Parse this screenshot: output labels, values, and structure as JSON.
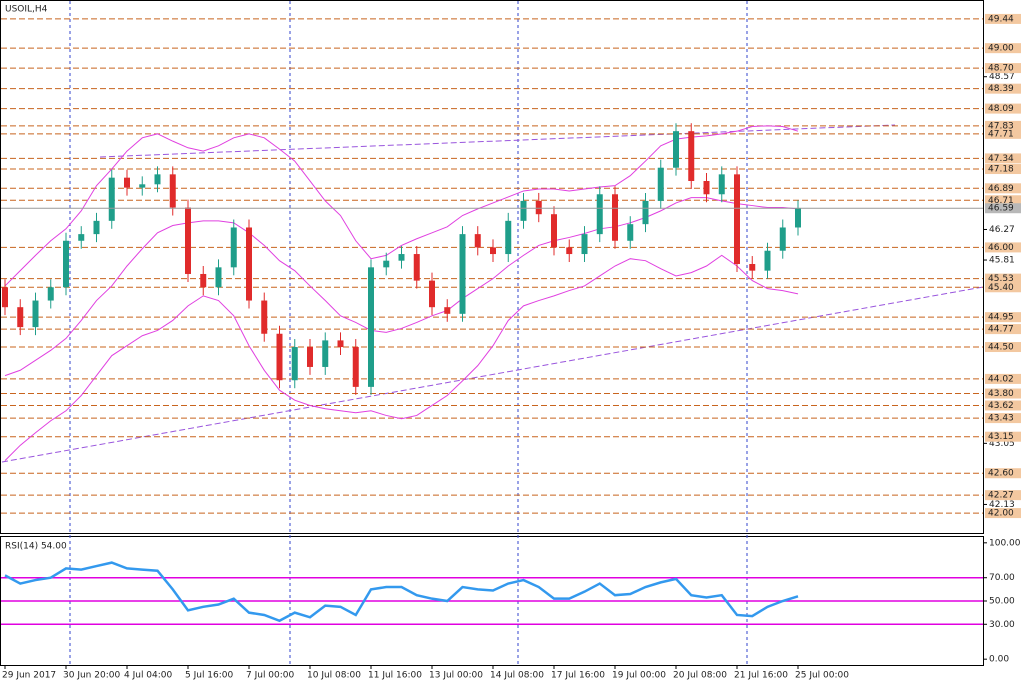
{
  "chart_data": [
    {
      "type": "candlestick",
      "title": "USOIL,H4",
      "categories": [
        "29 Jun 2017",
        null,
        null,
        null,
        "30 Jun 20:00",
        null,
        null,
        null,
        "4 Jul 04:00",
        null,
        null,
        null,
        "5 Jul 16:00",
        null,
        null,
        null,
        "7 Jul 00:00",
        null,
        null,
        null,
        "10 Jul 08:00",
        null,
        null,
        null,
        "11 Jul 16:00",
        null,
        null,
        null,
        "13 Jul 00:00",
        null,
        null,
        null,
        "14 Jul 08:00",
        null,
        null,
        null,
        "17 Jul 16:00",
        null,
        null,
        null,
        "19 Jul 00:00",
        null,
        null,
        null,
        "20 Jul 08:00",
        null,
        null,
        null,
        "21 Jul 16:00",
        null,
        null,
        null,
        "25 Jul 00:00"
      ],
      "open": [
        45.4,
        45.1,
        44.8,
        45.2,
        45.4,
        46.1,
        46.2,
        46.4,
        47.05,
        46.9,
        46.95,
        47.1,
        46.6,
        45.6,
        45.4,
        45.7,
        46.3,
        45.2,
        44.7,
        44.0,
        44.5,
        44.2,
        44.6,
        44.5,
        43.9,
        45.7,
        45.8,
        45.9,
        45.5,
        45.1,
        45.0,
        46.2,
        46.0,
        45.9,
        46.4,
        46.7,
        46.5,
        46.0,
        45.9,
        46.2,
        46.8,
        46.1,
        46.35,
        46.7,
        47.2,
        47.75,
        47.0,
        46.8,
        47.1,
        45.75,
        45.65,
        45.95,
        46.3
      ],
      "high": [
        45.52,
        45.22,
        45.32,
        45.52,
        46.22,
        46.32,
        46.52,
        47.17,
        47.17,
        47.07,
        47.22,
        47.22,
        46.72,
        45.72,
        45.82,
        46.42,
        46.42,
        45.32,
        44.82,
        44.62,
        44.62,
        44.72,
        44.72,
        44.62,
        45.82,
        45.92,
        46.02,
        46.02,
        45.62,
        45.22,
        46.32,
        46.32,
        46.12,
        46.52,
        46.82,
        46.82,
        46.62,
        46.12,
        46.32,
        46.92,
        46.92,
        46.47,
        46.82,
        47.32,
        47.87,
        47.87,
        47.12,
        47.22,
        47.22,
        45.87,
        46.07,
        46.42,
        46.71
      ],
      "low": [
        44.98,
        44.68,
        44.68,
        45.08,
        45.28,
        45.98,
        46.08,
        46.28,
        46.78,
        46.78,
        46.83,
        46.48,
        45.48,
        45.28,
        45.28,
        45.58,
        45.08,
        44.58,
        43.88,
        43.88,
        44.08,
        44.08,
        44.38,
        43.78,
        43.78,
        45.58,
        45.68,
        45.38,
        44.98,
        44.88,
        44.88,
        45.88,
        45.78,
        45.78,
        46.28,
        46.38,
        45.88,
        45.78,
        45.78,
        46.08,
        45.98,
        45.98,
        46.23,
        46.58,
        47.08,
        46.88,
        46.68,
        46.68,
        45.63,
        45.53,
        45.53,
        45.83,
        46.18
      ],
      "close": [
        45.1,
        44.8,
        45.2,
        45.4,
        46.1,
        46.2,
        46.4,
        47.05,
        46.9,
        46.95,
        47.1,
        46.6,
        45.6,
        45.4,
        45.7,
        46.3,
        45.2,
        44.7,
        44.0,
        44.5,
        44.2,
        44.6,
        44.5,
        43.9,
        45.7,
        45.8,
        45.9,
        45.5,
        45.1,
        45.0,
        46.2,
        46.0,
        45.9,
        46.4,
        46.7,
        46.5,
        46.0,
        45.9,
        46.2,
        46.8,
        46.1,
        46.35,
        46.7,
        47.2,
        47.75,
        47.0,
        46.8,
        47.1,
        45.75,
        45.65,
        45.95,
        46.3,
        46.59
      ],
      "colors": {
        "up": "#1f9e8a",
        "down": "#e02b2b"
      },
      "series": [
        {
          "color": "#e040e0",
          "values": [
            45.42,
            45.65,
            45.88,
            46.1,
            46.28,
            46.55,
            46.93,
            47.18,
            47.45,
            47.65,
            47.71,
            47.6,
            47.5,
            47.45,
            47.53,
            47.65,
            47.71,
            47.65,
            47.48,
            47.3,
            47.0,
            46.7,
            46.48,
            46.1,
            45.83,
            45.88,
            46.03,
            46.13,
            46.22,
            46.31,
            46.48,
            46.58,
            46.67,
            46.76,
            46.85,
            46.88,
            46.88,
            46.85,
            46.88,
            46.91,
            46.93,
            47.08,
            47.3,
            47.53,
            47.63,
            47.66,
            47.68,
            47.71,
            47.75,
            47.82,
            47.83,
            47.82,
            47.75
          ]
        },
        {
          "color": "#e040e0",
          "values": [
            44.07,
            44.15,
            44.3,
            44.45,
            44.63,
            44.9,
            45.2,
            45.42,
            45.72,
            45.98,
            46.22,
            46.33,
            46.37,
            46.4,
            46.4,
            46.37,
            46.22,
            46.03,
            45.8,
            45.65,
            45.42,
            45.2,
            44.97,
            44.87,
            44.75,
            44.72,
            44.78,
            44.87,
            44.97,
            45.05,
            45.23,
            45.38,
            45.53,
            45.72,
            45.88,
            46.03,
            46.1,
            46.15,
            46.21,
            46.28,
            46.31,
            46.37,
            46.45,
            46.55,
            46.67,
            46.75,
            46.75,
            46.7,
            46.66,
            46.63,
            46.6,
            46.6,
            46.58
          ]
        },
        {
          "color": "#e040e0",
          "values": [
            42.79,
            43.02,
            43.21,
            43.39,
            43.54,
            43.77,
            44.07,
            44.37,
            44.52,
            44.67,
            44.75,
            44.9,
            45.12,
            45.27,
            45.2,
            44.97,
            44.52,
            44.15,
            43.85,
            43.7,
            43.62,
            43.57,
            43.54,
            43.51,
            43.54,
            43.47,
            43.42,
            43.47,
            43.62,
            43.77,
            43.99,
            44.22,
            44.52,
            44.9,
            45.12,
            45.2,
            45.27,
            45.35,
            45.42,
            45.57,
            45.72,
            45.83,
            45.8,
            45.68,
            45.57,
            45.62,
            45.72,
            45.88,
            45.72,
            45.5,
            45.38,
            45.35,
            45.3
          ]
        }
      ],
      "ylim": [
        41.7,
        49.71
      ],
      "levels_color": "#c8641e",
      "levels": [
        49.44,
        {
          "value": 49,
          "label": "49.00"
        },
        {
          "value": 48.7,
          "label": "48.70"
        },
        48.39,
        48.09,
        47.83,
        47.71,
        47.34,
        47.18,
        46.89,
        46.71,
        {
          "value": 46,
          "label": "46.00"
        },
        45.53,
        {
          "value": 45.4,
          "label": "45.40"
        },
        44.95,
        44.77,
        {
          "value": 44.5,
          "label": "44.50"
        },
        44.02,
        {
          "value": 43.8,
          "label": "43.80"
        },
        43.62,
        43.43,
        43.15,
        {
          "value": 42.6,
          "label": "42.60"
        },
        42.27,
        {
          "value": 42,
          "label": "42.00"
        }
      ],
      "yticks": [
        48.57,
        46.27,
        45.81,
        43.05,
        42.13
      ],
      "current_price": 46.59
    },
    {
      "type": "line",
      "title": "RSI(14) 54.00",
      "color": "#3399ee",
      "values": [
        72,
        65,
        68,
        70,
        78,
        77,
        80,
        83,
        78,
        77,
        76,
        60,
        42,
        45,
        47,
        52,
        40,
        38,
        33,
        40,
        36,
        46,
        45,
        38,
        60,
        62,
        62,
        55,
        52,
        50,
        62,
        60,
        59,
        65,
        68,
        62,
        52,
        52,
        58,
        65,
        55,
        56,
        62,
        66,
        69,
        55,
        53,
        55,
        38,
        37,
        45,
        50,
        54
      ],
      "ylim": [
        -5,
        105
      ],
      "yticks": [
        {
          "value": 100,
          "label": "100.00"
        },
        {
          "value": 70,
          "label": "70.00"
        },
        {
          "value": 50,
          "label": "50.00"
        },
        {
          "value": 30,
          "label": "30.00"
        },
        {
          "value": 0,
          "label": "0.00"
        }
      ],
      "levels": [
        70,
        50,
        30
      ],
      "levels_color": "#e000e0"
    }
  ]
}
